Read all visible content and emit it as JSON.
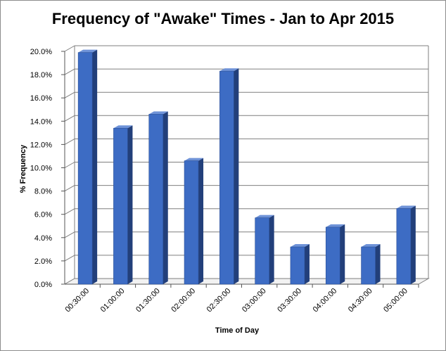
{
  "chart_data": {
    "type": "bar",
    "title": "Frequency of \"Awake\" Times - Jan to Apr 2015",
    "xlabel": "Time of Day",
    "ylabel": "% Frequency",
    "categories": [
      "00:30:00",
      "01:00:00",
      "01:30:00",
      "02:00:00",
      "02:30:00",
      "03:00:00",
      "03:30:00",
      "04:00:00",
      "04:30:00",
      "05:00:00"
    ],
    "values": [
      19.9,
      13.4,
      14.6,
      10.6,
      18.3,
      5.7,
      3.2,
      4.9,
      3.2,
      6.5
    ],
    "ylim": [
      0,
      20
    ],
    "yticks": [
      "0.0%",
      "2.0%",
      "4.0%",
      "6.0%",
      "8.0%",
      "10.0%",
      "12.0%",
      "14.0%",
      "16.0%",
      "18.0%",
      "20.0%"
    ],
    "grid": true,
    "legend": "none",
    "colors": {
      "bar_front": "#3d6cc4",
      "bar_side": "#223f7a",
      "bar_top": "#6f93d8",
      "grid": "#7f7f7f",
      "wall": "#ffffff"
    }
  }
}
